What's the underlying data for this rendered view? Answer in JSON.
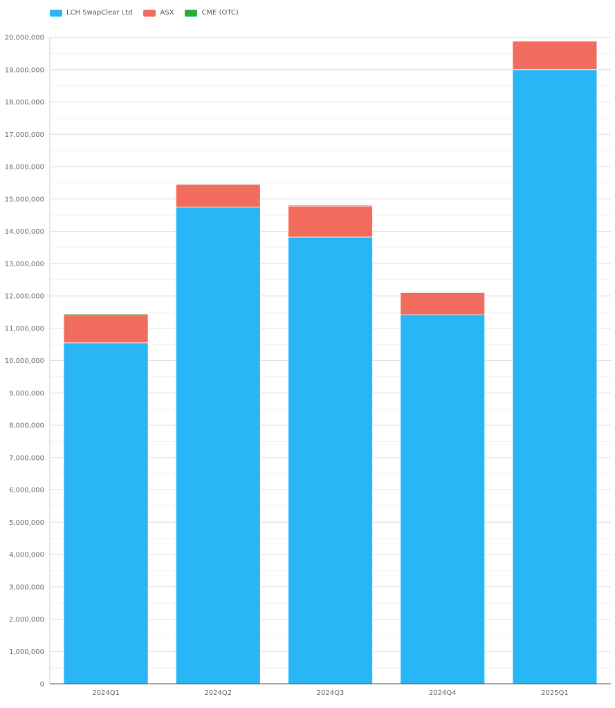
{
  "chart_data": {
    "type": "bar",
    "stacked": true,
    "categories": [
      "2024Q1",
      "2024Q2",
      "2024Q3",
      "2024Q4",
      "2025Q1"
    ],
    "series": [
      {
        "name": "LCH SwapClear Ltd",
        "color": "#29b6f6",
        "values": [
          10550000,
          14750000,
          13820000,
          11420000,
          19000000
        ]
      },
      {
        "name": "ASX",
        "color": "#f26c5e",
        "values": [
          870000,
          700000,
          960000,
          680000,
          880000
        ]
      },
      {
        "name": "CME (OTC)",
        "color": "#2aaa3a",
        "values": [
          30000,
          20000,
          30000,
          20000,
          20000
        ]
      }
    ],
    "ylim": [
      0,
      20000000
    ],
    "ytick_step": 1000000,
    "grid": true,
    "legend_position": "top-left",
    "title": "",
    "xlabel": "",
    "ylabel": ""
  }
}
